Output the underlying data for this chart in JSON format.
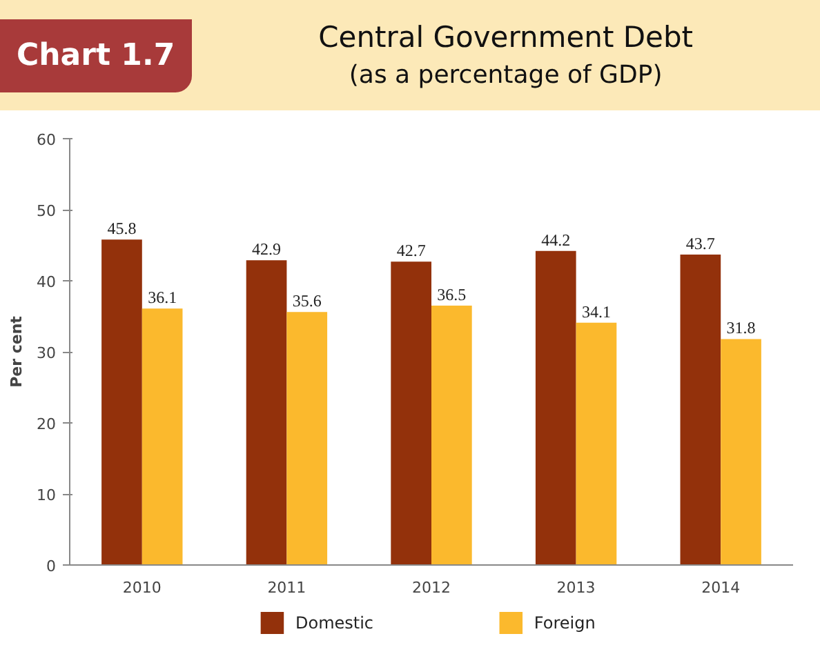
{
  "chart_data": {
    "type": "bar",
    "title": "Central Government Debt",
    "subtitle": "(as a percentage of GDP)",
    "ylabel": "Per cent",
    "annotations": [
      "Chart 1.7"
    ],
    "categories": [
      "2010",
      "2011",
      "2012",
      "2013",
      "2014"
    ],
    "series": [
      {
        "name": "Domestic",
        "color": "#93310b",
        "values": [
          45.8,
          42.9,
          42.7,
          44.2,
          43.7
        ]
      },
      {
        "name": "Foreign",
        "color": "#fbb92d",
        "values": [
          36.1,
          35.6,
          36.5,
          34.1,
          31.8
        ]
      }
    ],
    "ylim": [
      0,
      60
    ],
    "yticks": [
      0,
      10,
      20,
      30,
      40,
      50,
      60
    ],
    "grid": false,
    "legend": "bottom",
    "data_labels": true
  }
}
